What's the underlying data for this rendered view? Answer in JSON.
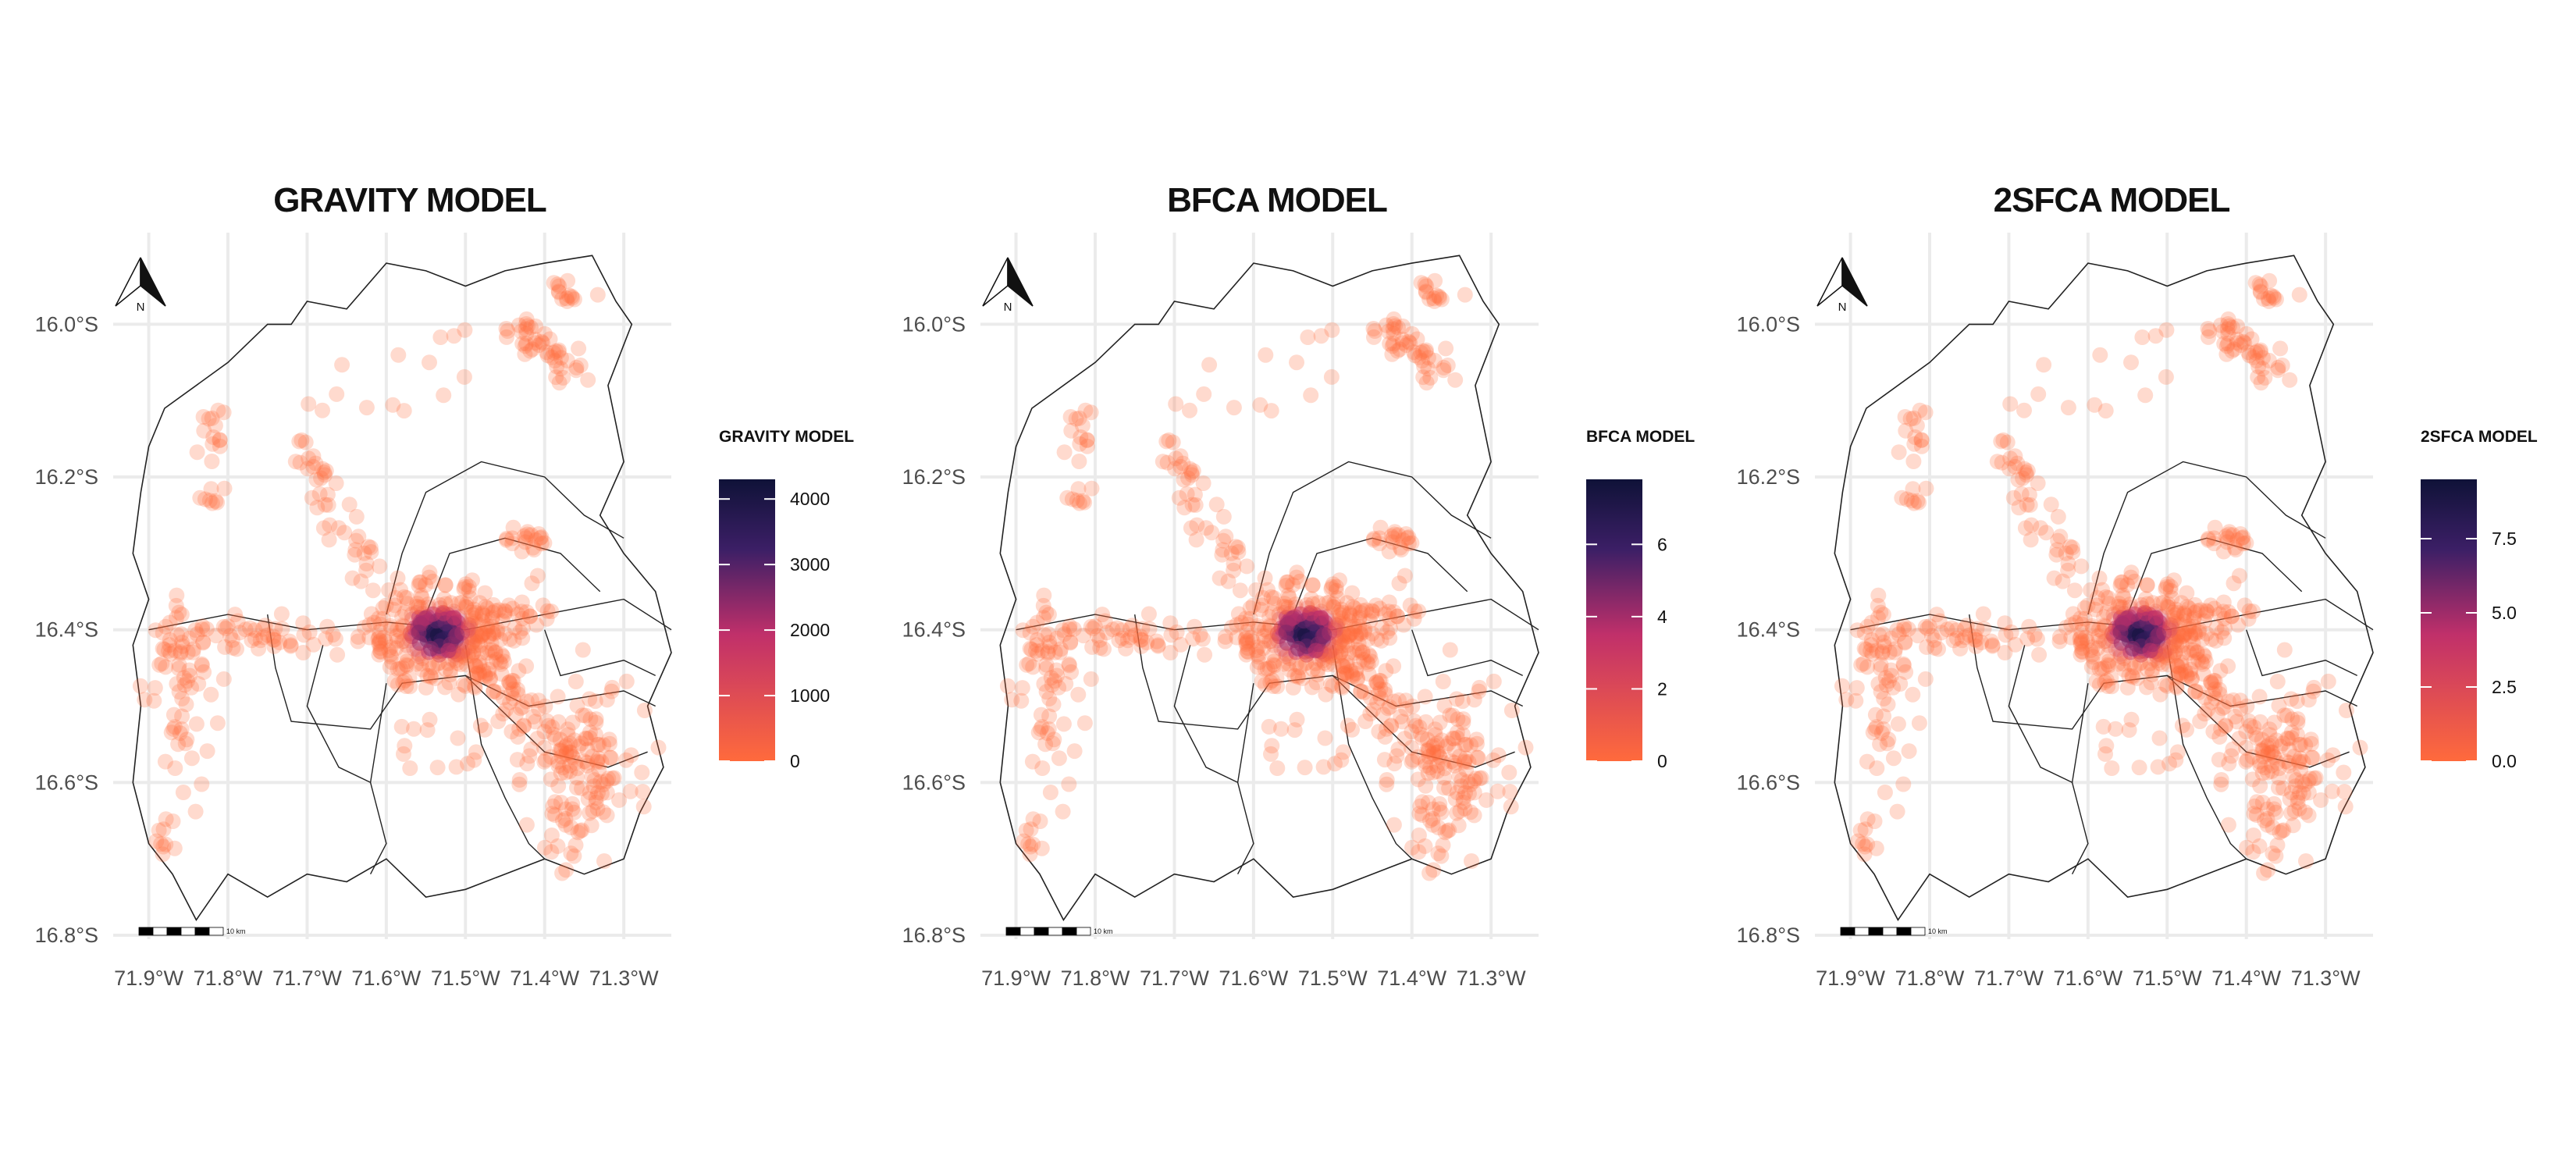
{
  "chart_data": [
    {
      "type": "scatter",
      "title": "GRAVITY MODEL",
      "legend_title": "GRAVITY MODEL",
      "legend_breaks": [
        "0",
        "1000",
        "2000",
        "3000",
        "4000"
      ],
      "legend_range": [
        0,
        4300
      ],
      "peak": 4300
    },
    {
      "type": "scatter",
      "title": "BFCA MODEL",
      "legend_title": "BFCA MODEL",
      "legend_breaks": [
        "0",
        "2",
        "4",
        "6"
      ],
      "legend_range": [
        0,
        7.8
      ],
      "peak": 7.8
    },
    {
      "type": "scatter",
      "title": "2SFCA MODEL",
      "legend_title": "2SFCA MODEL",
      "legend_breaks": [
        "0.0",
        "2.5",
        "5.0",
        "7.5"
      ],
      "legend_range": [
        0,
        9.5
      ],
      "peak": 9.5
    }
  ],
  "axes": {
    "x_ticks": [
      "71.9°W",
      "71.8°W",
      "71.7°W",
      "71.6°W",
      "71.5°W",
      "71.4°W",
      "71.3°W"
    ],
    "x_values": [
      -71.9,
      -71.8,
      -71.7,
      -71.6,
      -71.5,
      -71.4,
      -71.3
    ],
    "y_ticks": [
      "16.0°S",
      "16.2°S",
      "16.4°S",
      "16.6°S",
      "16.8°S"
    ],
    "y_values": [
      -16.0,
      -16.2,
      -16.4,
      -16.6,
      -16.8
    ],
    "xlim": [
      -71.94,
      -71.24
    ],
    "ylim": [
      -16.8,
      -15.88
    ],
    "grid": true
  },
  "north_arrow_label": "N",
  "scale_bar_label": "10 km",
  "colors": {
    "low": "#ff6a3c",
    "mid": "#c0306a",
    "high": "#3c1f66",
    "top": "#0f1238",
    "grid": "#ebebeb",
    "border": "#222222"
  },
  "boundary_outline": [
    [
      -71.9,
      -16.16
    ],
    [
      -71.88,
      -16.11
    ],
    [
      -71.8,
      -16.05
    ],
    [
      -71.75,
      -16.0
    ],
    [
      -71.72,
      -16.0
    ],
    [
      -71.7,
      -15.97
    ],
    [
      -71.65,
      -15.98
    ],
    [
      -71.6,
      -15.92
    ],
    [
      -71.55,
      -15.93
    ],
    [
      -71.5,
      -15.95
    ],
    [
      -71.45,
      -15.93
    ],
    [
      -71.4,
      -15.92
    ],
    [
      -71.34,
      -15.91
    ],
    [
      -71.31,
      -15.97
    ],
    [
      -71.29,
      -16.0
    ],
    [
      -71.32,
      -16.08
    ],
    [
      -71.3,
      -16.18
    ],
    [
      -71.33,
      -16.25
    ],
    [
      -71.3,
      -16.3
    ],
    [
      -71.26,
      -16.35
    ],
    [
      -71.24,
      -16.43
    ],
    [
      -71.27,
      -16.5
    ],
    [
      -71.25,
      -16.58
    ],
    [
      -71.28,
      -16.64
    ],
    [
      -71.3,
      -16.7
    ],
    [
      -71.35,
      -16.72
    ],
    [
      -71.4,
      -16.7
    ],
    [
      -71.45,
      -16.72
    ],
    [
      -71.5,
      -16.74
    ],
    [
      -71.55,
      -16.75
    ],
    [
      -71.6,
      -16.7
    ],
    [
      -71.65,
      -16.73
    ],
    [
      -71.7,
      -16.72
    ],
    [
      -71.75,
      -16.75
    ],
    [
      -71.8,
      -16.72
    ],
    [
      -71.84,
      -16.78
    ],
    [
      -71.87,
      -16.72
    ],
    [
      -71.9,
      -16.68
    ],
    [
      -71.92,
      -16.6
    ],
    [
      -71.91,
      -16.5
    ],
    [
      -71.92,
      -16.42
    ],
    [
      -71.9,
      -16.36
    ],
    [
      -71.92,
      -16.3
    ],
    [
      -71.91,
      -16.22
    ]
  ],
  "internal_boundaries": [
    [
      [
        -71.9,
        -16.4
      ],
      [
        -71.8,
        -16.38
      ],
      [
        -71.7,
        -16.4
      ],
      [
        -71.6,
        -16.39
      ],
      [
        -71.5,
        -16.4
      ],
      [
        -71.4,
        -16.38
      ],
      [
        -71.3,
        -16.36
      ],
      [
        -71.24,
        -16.4
      ]
    ],
    [
      [
        -71.75,
        -16.38
      ],
      [
        -71.74,
        -16.45
      ],
      [
        -71.72,
        -16.52
      ],
      [
        -71.62,
        -16.53
      ],
      [
        -71.58,
        -16.47
      ],
      [
        -71.5,
        -16.46
      ],
      [
        -71.42,
        -16.5
      ],
      [
        -71.3,
        -16.48
      ],
      [
        -71.26,
        -16.5
      ]
    ],
    [
      [
        -71.6,
        -16.38
      ],
      [
        -71.58,
        -16.3
      ],
      [
        -71.55,
        -16.22
      ],
      [
        -71.48,
        -16.18
      ],
      [
        -71.4,
        -16.2
      ],
      [
        -71.35,
        -16.25
      ],
      [
        -71.3,
        -16.28
      ]
    ],
    [
      [
        -71.55,
        -16.38
      ],
      [
        -71.52,
        -16.3
      ],
      [
        -71.45,
        -16.28
      ],
      [
        -71.38,
        -16.3
      ],
      [
        -71.33,
        -16.35
      ]
    ],
    [
      [
        -71.5,
        -16.42
      ],
      [
        -71.48,
        -16.55
      ],
      [
        -71.45,
        -16.62
      ],
      [
        -71.42,
        -16.68
      ],
      [
        -71.4,
        -16.7
      ]
    ],
    [
      [
        -71.6,
        -16.47
      ],
      [
        -71.62,
        -16.6
      ],
      [
        -71.6,
        -16.68
      ],
      [
        -71.62,
        -16.72
      ]
    ],
    [
      [
        -71.5,
        -16.46
      ],
      [
        -71.4,
        -16.56
      ],
      [
        -71.32,
        -16.58
      ],
      [
        -71.27,
        -16.56
      ]
    ],
    [
      [
        -71.68,
        -16.42
      ],
      [
        -71.7,
        -16.5
      ],
      [
        -71.66,
        -16.58
      ],
      [
        -71.62,
        -16.6
      ]
    ],
    [
      [
        -71.4,
        -16.4
      ],
      [
        -71.38,
        -16.46
      ],
      [
        -71.3,
        -16.44
      ],
      [
        -71.26,
        -16.46
      ]
    ]
  ]
}
